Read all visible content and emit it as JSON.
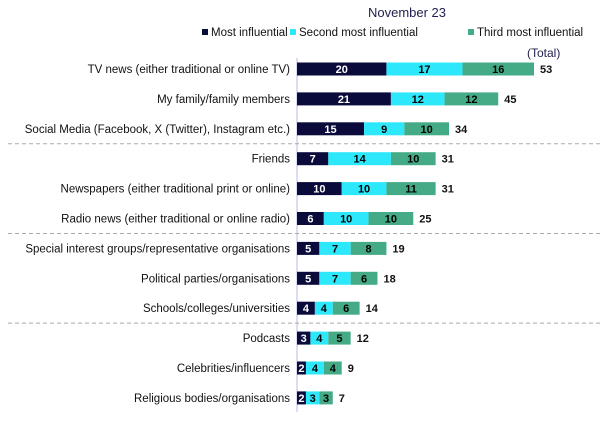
{
  "chart_data": {
    "type": "bar",
    "orientation": "horizontal",
    "stacked": true,
    "title": "November  23",
    "total_header": "(Total)",
    "legend_position": "top",
    "categories": [
      "TV news (either traditional or online TV)",
      "My family/family members",
      "Social Media (Facebook, X (Twitter), Instagram etc.)",
      "Friends",
      "Newspapers (either traditional print or online)",
      "Radio news (either traditional or online radio)",
      "Special interest groups/representative organisations",
      "Political parties/organisations",
      "Schools/colleges/universities",
      "Podcasts",
      "Celebrities/influencers",
      "Religious bodies/organisations"
    ],
    "series": [
      {
        "name": "Most influential",
        "color": "#0b0b3b",
        "label_color": "#ffffff",
        "values": [
          20,
          21,
          15,
          7,
          10,
          6,
          5,
          5,
          4,
          3,
          2,
          2
        ]
      },
      {
        "name": "Second most influential",
        "color": "#2de8fb",
        "label_color": "#000000",
        "values": [
          17,
          12,
          9,
          14,
          10,
          10,
          7,
          7,
          4,
          4,
          4,
          3
        ]
      },
      {
        "name": "Third most influential",
        "color": "#45ab87",
        "label_color": "#000000",
        "values": [
          16,
          12,
          10,
          10,
          11,
          10,
          8,
          6,
          6,
          5,
          4,
          3
        ]
      }
    ],
    "totals": [
      53,
      45,
      34,
      31,
      31,
      25,
      19,
      18,
      14,
      12,
      9,
      7
    ],
    "group_separators_after": [
      2,
      5,
      8
    ],
    "xlim": [
      0,
      53
    ]
  }
}
